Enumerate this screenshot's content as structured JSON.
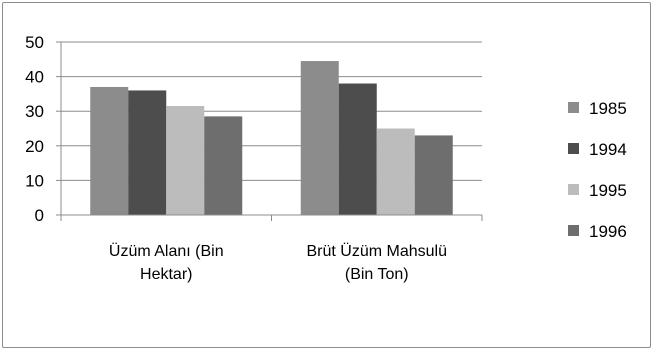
{
  "chart_data": {
    "type": "bar",
    "categories": [
      [
        "Üzüm Alanı (Bin",
        "Hektar)"
      ],
      [
        "Brüt Üzüm  Mahsulü",
        "(Bin Ton)"
      ]
    ],
    "series": [
      {
        "name": "1985",
        "color": "#8c8c8c",
        "values": [
          37,
          44.5
        ]
      },
      {
        "name": "1994",
        "color": "#4d4d4d",
        "values": [
          36,
          38
        ]
      },
      {
        "name": "1995",
        "color": "#bcbcbc",
        "values": [
          31.5,
          25
        ]
      },
      {
        "name": "1996",
        "color": "#6e6e6e",
        "values": [
          28.5,
          23
        ]
      }
    ],
    "yticks": [
      0,
      10,
      20,
      30,
      40,
      50
    ],
    "ylim": [
      0,
      50
    ],
    "grid": true,
    "legend_position": "right"
  }
}
